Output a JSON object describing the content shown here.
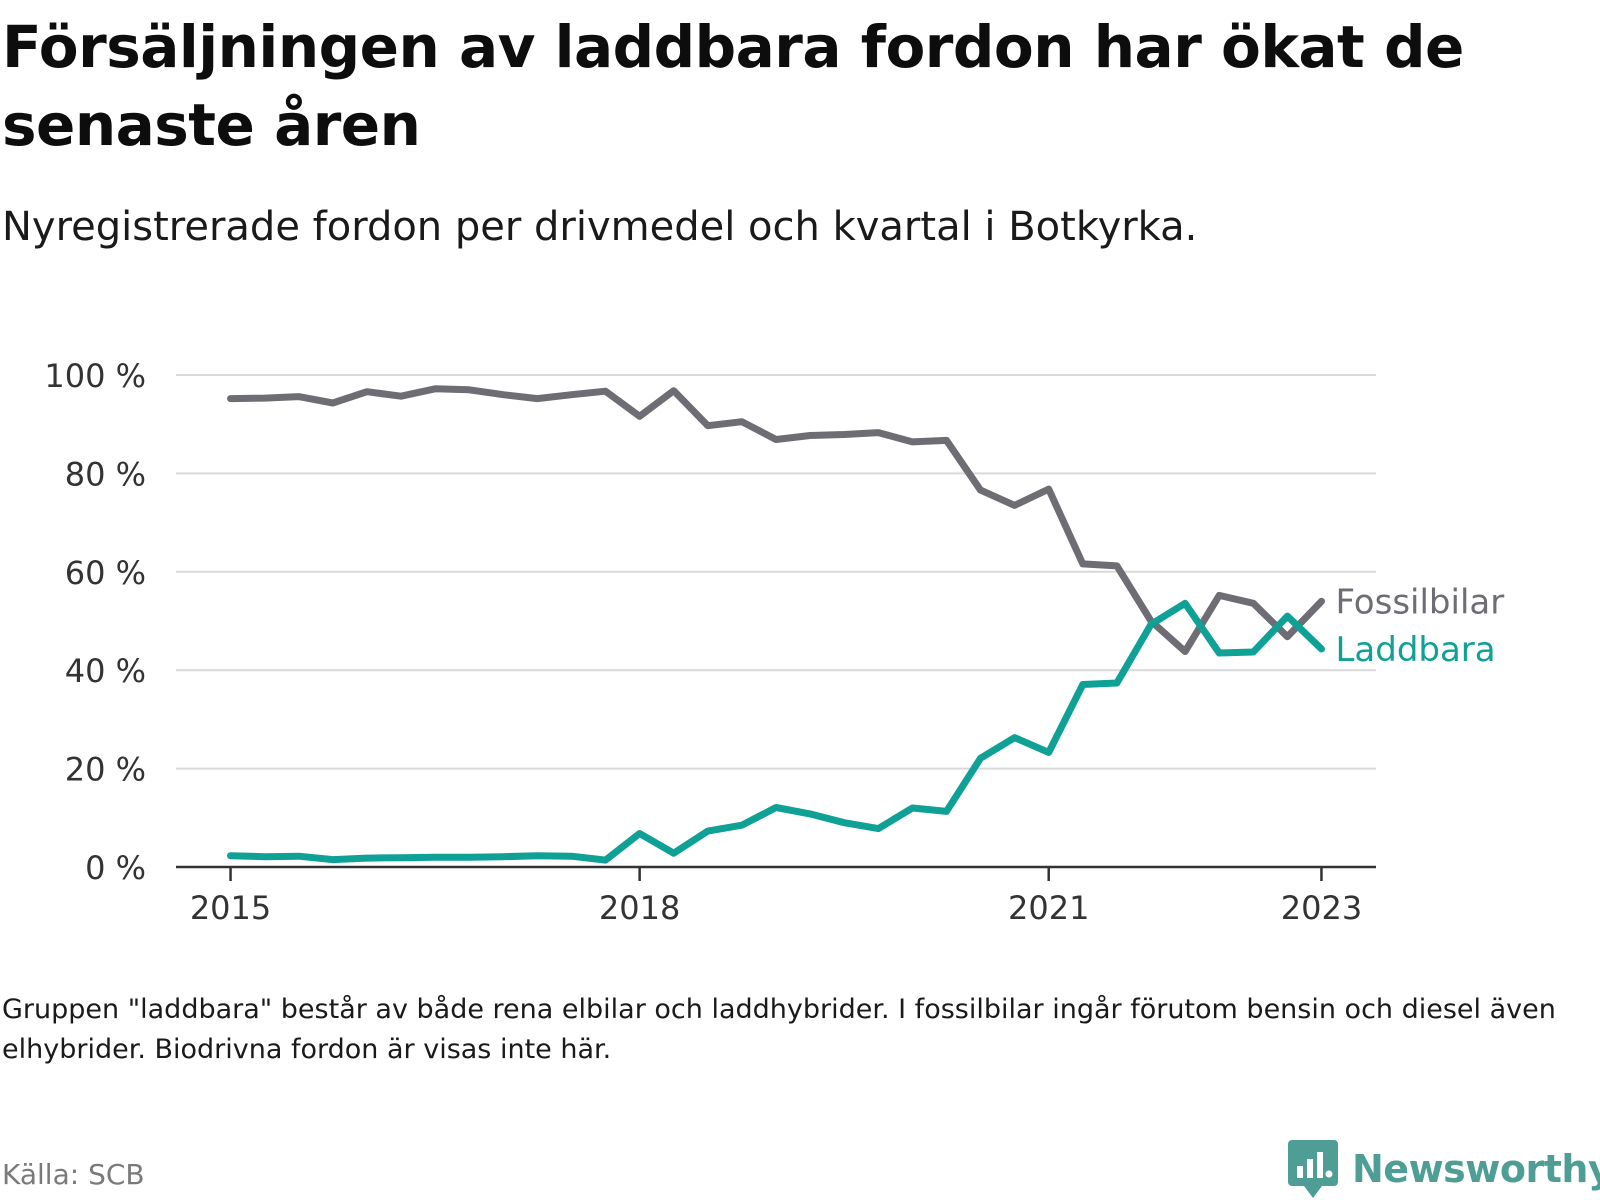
{
  "title": "Försäljningen av laddbara fordon har ökat de senaste åren",
  "subtitle": "Nyregistrerade fordon per drivmedel och kvartal i Botkyrka.",
  "note": "Gruppen \"laddbara\" består av både rena elbilar och laddhybrider. I fossilbilar ingår förutom bensin och diesel även elhybrider. Biodrivna fordon är visas inte här.",
  "source": "Källa: SCB",
  "brand": "Newsworthy",
  "colors": {
    "fossil": "#6e6d74",
    "laddbara": "#0fa195",
    "grid": "#d9d9d9",
    "axis": "#333333",
    "brand": "#4e9e95"
  },
  "chart_data": {
    "type": "line",
    "title": "Försäljningen av laddbara fordon har ökat de senaste åren",
    "xlabel": "",
    "ylabel": "",
    "x_unit": "quarter index (0 = 2015 Q1)",
    "x_ticks": [
      {
        "x": 0,
        "label": "2015"
      },
      {
        "x": 12,
        "label": "2018"
      },
      {
        "x": 24,
        "label": "2021"
      },
      {
        "x": 32,
        "label": "2023"
      }
    ],
    "xlim": [
      -1.6,
      33.6
    ],
    "y_ticks": [
      {
        "y": 0,
        "label": "0 %"
      },
      {
        "y": 20,
        "label": "20 %"
      },
      {
        "y": 40,
        "label": "40 %"
      },
      {
        "y": 60,
        "label": "60 %"
      },
      {
        "y": 80,
        "label": "80 %"
      },
      {
        "y": 100,
        "label": "100 %"
      }
    ],
    "ylim": [
      0,
      100
    ],
    "grid": true,
    "series": [
      {
        "name": "Fossilbilar",
        "color": "#6e6d74",
        "x": [
          0,
          1,
          2,
          3,
          4,
          5,
          6,
          7,
          8,
          9,
          10,
          11,
          12,
          13,
          14,
          15,
          16,
          17,
          18,
          19,
          20,
          21,
          22,
          23,
          24,
          25,
          26,
          27,
          28,
          29,
          30,
          31,
          32
        ],
        "values": [
          95.2,
          95.3,
          95.6,
          94.3,
          96.6,
          95.7,
          97.2,
          97.0,
          96.0,
          95.2,
          96.0,
          96.7,
          91.6,
          96.8,
          89.7,
          90.5,
          86.9,
          87.7,
          87.9,
          88.3,
          86.4,
          86.7,
          76.6,
          73.5,
          76.8,
          61.6,
          61.2,
          50.0,
          43.8,
          55.2,
          53.6,
          46.8,
          54.0
        ]
      },
      {
        "name": "Laddbara",
        "color": "#0fa195",
        "x": [
          0,
          1,
          2,
          3,
          4,
          5,
          6,
          7,
          8,
          9,
          10,
          11,
          12,
          13,
          14,
          15,
          16,
          17,
          18,
          19,
          20,
          21,
          22,
          23,
          24,
          25,
          26,
          27,
          28,
          29,
          30,
          31,
          32
        ],
        "values": [
          2.3,
          2.1,
          2.2,
          1.5,
          1.8,
          1.9,
          2.0,
          2.0,
          2.1,
          2.3,
          2.2,
          1.4,
          6.8,
          2.8,
          7.3,
          8.5,
          12.1,
          10.8,
          9.0,
          7.8,
          12.0,
          11.3,
          22.1,
          26.3,
          23.3,
          37.1,
          37.4,
          49.3,
          53.6,
          43.5,
          43.7,
          51.0,
          44.3
        ]
      }
    ]
  }
}
